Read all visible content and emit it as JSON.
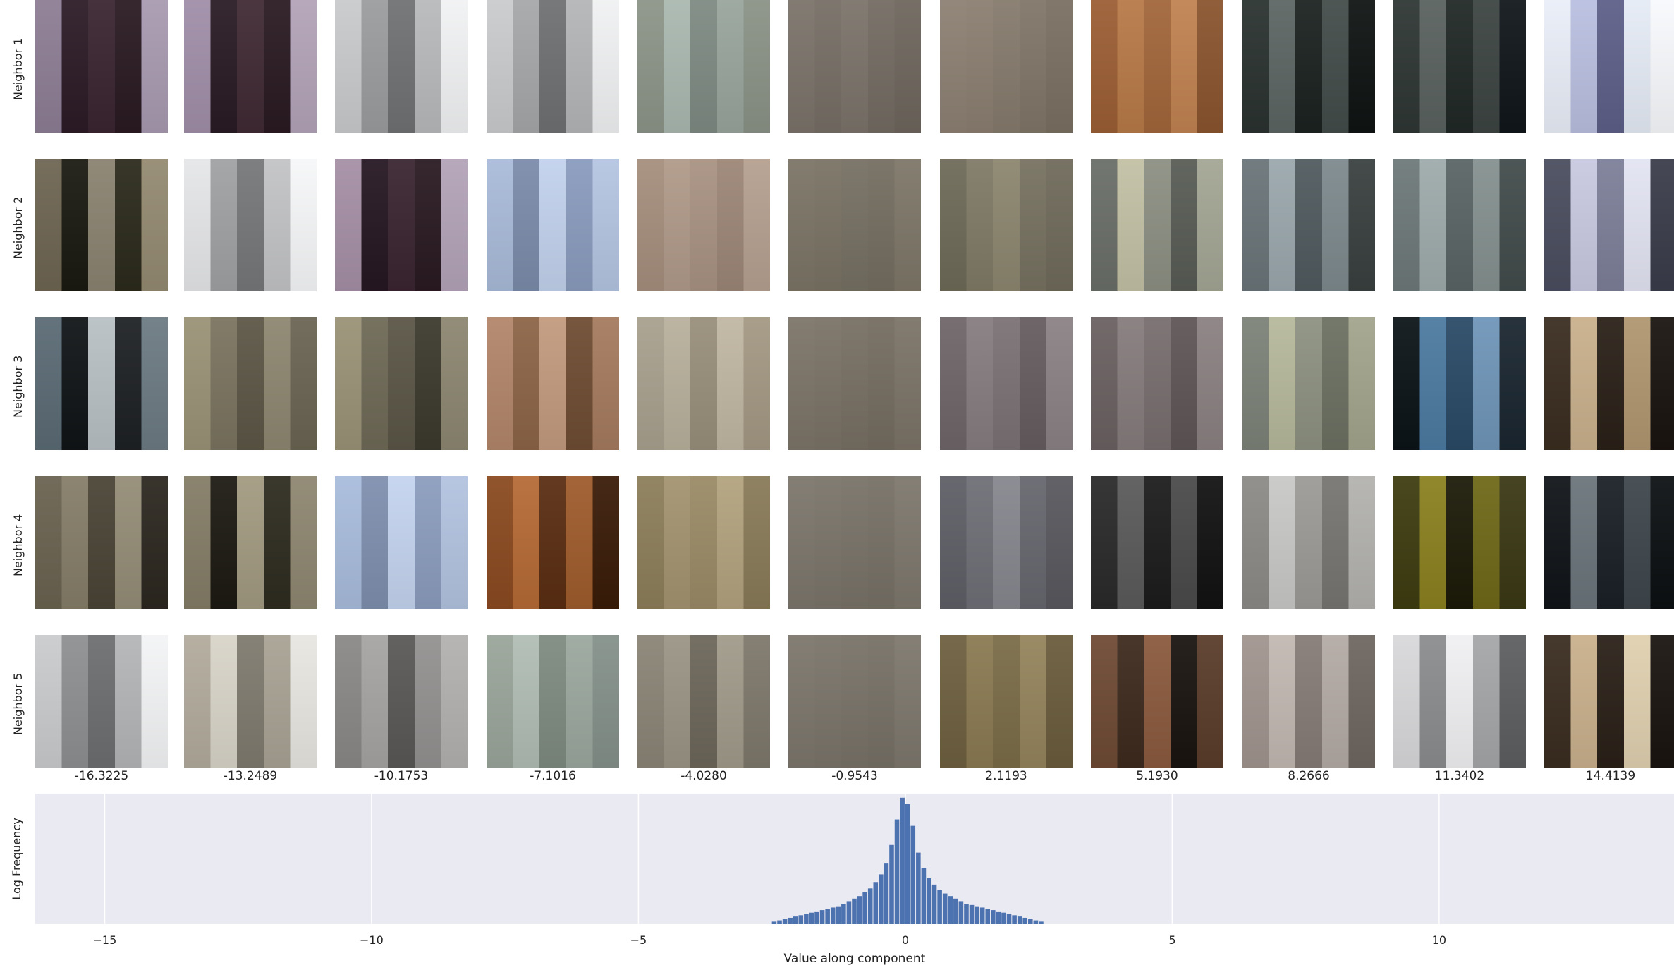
{
  "row_labels": [
    "Neighbor 1",
    "Neighbor 2",
    "Neighbor 3",
    "Neighbor 4",
    "Neighbor 5"
  ],
  "column_values": [
    "-16.3225",
    "-13.2489",
    "-10.1753",
    "-7.1016",
    "-4.0280",
    "-0.9543",
    "2.1193",
    "5.1930",
    "8.2666",
    "11.3402",
    "14.4139"
  ],
  "tile_palettes": [
    [
      [
        "#8d7d94",
        "#2c1b26",
        "#3a2530",
        "#2a1a22",
        "#a89ab0"
      ],
      [
        "#a08ea8",
        "#2a1b24",
        "#402a34",
        "#2a1a22",
        "#b3a3b8"
      ],
      [
        "#c8cacc",
        "#9a9c9e",
        "#6f7173",
        "#b7b9bb",
        "#f1f2f3"
      ],
      [
        "#c9cbcd",
        "#a5a7a9",
        "#6e7072",
        "#b3b5b7",
        "#f0f1f2"
      ],
      [
        "#8c9488",
        "#a9b8b0",
        "#7d8a82",
        "#98a59c",
        "#8a9286"
      ],
      [
        "#7b736a",
        "#766e65",
        "#7b736a",
        "#736b62",
        "#6e665d"
      ],
      [
        "#8c8072",
        "#8a7e70",
        "#857a6c",
        "#807568",
        "#7a6f62"
      ],
      [
        "#9b5e34",
        "#b77947",
        "#a2663a",
        "#c08251",
        "#8a542e"
      ],
      [
        "#2a3230",
        "#5c6563",
        "#1b2220",
        "#434c4a",
        "#0f1413"
      ],
      [
        "#2e3634",
        "#59615f",
        "#202826",
        "#3c4442",
        "#10161a"
      ],
      [
        "#e9eef8",
        "#b9bfe0",
        "#5d5f88",
        "#e5ebf5",
        "#f7f9fc"
      ]
    ],
    [
      [
        "#6e6552",
        "#1a1a12",
        "#8a8270",
        "#2b2a1c",
        "#948a72"
      ],
      [
        "#e5e6e8",
        "#9fa1a3",
        "#757779",
        "#c2c3c5",
        "#f6f7f8"
      ],
      [
        "#a58fa6",
        "#261722",
        "#3a2530",
        "#2a1a22",
        "#b3a3b8"
      ],
      [
        "#a9bbd9",
        "#7b8caa",
        "#c2d2ec",
        "#8a9bbd",
        "#b4c5e1"
      ],
      [
        "#a58e7d",
        "#b09a89",
        "#a89282",
        "#9c8677",
        "#b5a090"
      ],
      [
        "#7b7466",
        "#797264",
        "#767063",
        "#746d60",
        "#7d7668"
      ],
      [
        "#6e6a58",
        "#7f7a66",
        "#8c866f",
        "#767160",
        "#6f6a5a"
      ],
      [
        "#6a6e68",
        "#c2c0a4",
        "#8c8f82",
        "#585c55",
        "#a3a594"
      ],
      [
        "#6a7478",
        "#9aa7ac",
        "#505a5e",
        "#7d898d",
        "#39403f"
      ],
      [
        "#6d7878",
        "#9eaaab",
        "#5a6464",
        "#84908f",
        "#424b4b"
      ],
      [
        "#4a4d5e",
        "#c8c8e0",
        "#7d7f99",
        "#e3e4f2",
        "#3a3c4a"
      ]
    ],
    [
      [
        "#5a6a74",
        "#101416",
        "#b8c0c4",
        "#1e2124",
        "#6c7a82"
      ],
      [
        "#9a9276",
        "#7a735f",
        "#5c5646",
        "#8d8670",
        "#6a6453"
      ],
      [
        "#9a9276",
        "#6e6956",
        "#5a5546",
        "#3c392d",
        "#8c8670"
      ],
      [
        "#b2866a",
        "#8c6446",
        "#c29a7e",
        "#6e4c32",
        "#a47a5e"
      ],
      [
        "#a8a08e",
        "#b8b09c",
        "#988e7a",
        "#c0b6a2",
        "#a39883"
      ],
      [
        "#7c7468",
        "#7a7266",
        "#776f63",
        "#746c60",
        "#7b7367"
      ],
      [
        "#6e6568",
        "#857c7f",
        "#7a7174",
        "#655c5f",
        "#8a8184"
      ],
      [
        "#6a6061",
        "#857b7c",
        "#776d6e",
        "#5e5556",
        "#8a8081"
      ],
      [
        "#7c8278",
        "#b6b89c",
        "#8d9180",
        "#6b7062",
        "#a2a48c"
      ],
      [
        "#0c1418",
        "#4c7aa0",
        "#2a4a66",
        "#6f95b8",
        "#1a2630"
      ],
      [
        "#3a2c20",
        "#c9b08c",
        "#2a2018",
        "#b09670",
        "#1a1410"
      ]
    ],
    [
      [
        "#6a6250",
        "#857d68",
        "#4a4436",
        "#948c76",
        "#2c2820"
      ],
      [
        "#847c66",
        "#1c1a12",
        "#a29a80",
        "#2e2c20",
        "#8e8670"
      ],
      [
        "#a8bcdc",
        "#7e8fae",
        "#c4d4ee",
        "#8b9cbd",
        "#b2c3e0"
      ],
      [
        "#8a4a20",
        "#b56a36",
        "#5a2e12",
        "#9e5c2c",
        "#3a1c08"
      ],
      [
        "#8c7e5a",
        "#a39370",
        "#9a8a66",
        "#b2a27e",
        "#887a58"
      ],
      [
        "#7c766c",
        "#7a746a",
        "#787268",
        "#767066",
        "#7d776d"
      ],
      [
        "#5e5e66",
        "#6e6e76",
        "#86868e",
        "#66666e",
        "#58585e"
      ],
      [
        "#2a2a2a",
        "#5a5a5a",
        "#1c1c1c",
        "#4a4a4a",
        "#121212"
      ],
      [
        "#8c8a86",
        "#c8c8c6",
        "#9c9a96",
        "#777571",
        "#b3b2ae"
      ],
      [
        "#3e3c10",
        "#8a8020",
        "#1c1a08",
        "#6e6818",
        "#3a3814"
      ],
      [
        "#101418",
        "#6a747a",
        "#1a2026",
        "#3e464c",
        "#0c1012"
      ]
    ],
    [
      [
        "#c9cbcd",
        "#8d8f91",
        "#6c6e70",
        "#b3b5b7",
        "#f3f4f5"
      ],
      [
        "#b2ab9c",
        "#d8d4c8",
        "#7f7a6e",
        "#a8a294",
        "#e8e6e0"
      ],
      [
        "#8a8886",
        "#a6a4a2",
        "#5a5856",
        "#939190",
        "#b3b1af"
      ],
      [
        "#9aa59a",
        "#b0bdb4",
        "#7e8a80",
        "#9ba89e",
        "#84908a"
      ],
      [
        "#8a8476",
        "#9a9485",
        "#6c665a",
        "#a09a8a",
        "#7e786b"
      ],
      [
        "#7c766c",
        "#7a746a",
        "#787268",
        "#767066",
        "#7d776d"
      ],
      [
        "#6e6040",
        "#8a7a52",
        "#7a6c48",
        "#94845c",
        "#6a5c3c"
      ],
      [
        "#6e4a34",
        "#3e2a1e",
        "#8a5a3e",
        "#1a1410",
        "#5a3c2a"
      ],
      [
        "#a0948e",
        "#c2b8b2",
        "#857b76",
        "#b3aaa4",
        "#6e6660"
      ],
      [
        "#d8d8da",
        "#8a8c8e",
        "#f0f0f2",
        "#a4a6a8",
        "#5c5e60"
      ],
      [
        "#3a2c20",
        "#c9b08c",
        "#2a2018",
        "#e0d0b0",
        "#1a1410"
      ]
    ]
  ],
  "chart_data": {
    "type": "bar",
    "xlabel": "Value along component",
    "ylabel": "Log Frequency",
    "xlim": [
      -16.3,
      14.4
    ],
    "xticks": [
      -15,
      -10,
      -5,
      0,
      5,
      10
    ],
    "xtick_labels": [
      "−15",
      "−10",
      "−5",
      "0",
      "5",
      "10"
    ],
    "bin_width": 0.1,
    "bar_color": "#4c72b0",
    "background": "#eaeaf2",
    "grid": true,
    "bins": [
      {
        "x": -2.45,
        "v": 0.02
      },
      {
        "x": -2.35,
        "v": 0.03
      },
      {
        "x": -2.25,
        "v": 0.04
      },
      {
        "x": -2.15,
        "v": 0.05
      },
      {
        "x": -2.05,
        "v": 0.06
      },
      {
        "x": -1.95,
        "v": 0.07
      },
      {
        "x": -1.85,
        "v": 0.08
      },
      {
        "x": -1.75,
        "v": 0.09
      },
      {
        "x": -1.65,
        "v": 0.1
      },
      {
        "x": -1.55,
        "v": 0.11
      },
      {
        "x": -1.45,
        "v": 0.12
      },
      {
        "x": -1.35,
        "v": 0.13
      },
      {
        "x": -1.25,
        "v": 0.14
      },
      {
        "x": -1.15,
        "v": 0.16
      },
      {
        "x": -1.05,
        "v": 0.18
      },
      {
        "x": -0.95,
        "v": 0.2
      },
      {
        "x": -0.85,
        "v": 0.22
      },
      {
        "x": -0.75,
        "v": 0.25
      },
      {
        "x": -0.65,
        "v": 0.28
      },
      {
        "x": -0.55,
        "v": 0.33
      },
      {
        "x": -0.45,
        "v": 0.39
      },
      {
        "x": -0.35,
        "v": 0.48
      },
      {
        "x": -0.25,
        "v": 0.62
      },
      {
        "x": -0.15,
        "v": 0.82
      },
      {
        "x": -0.05,
        "v": 0.99
      },
      {
        "x": 0.05,
        "v": 0.94
      },
      {
        "x": 0.15,
        "v": 0.77
      },
      {
        "x": 0.25,
        "v": 0.56
      },
      {
        "x": 0.35,
        "v": 0.44
      },
      {
        "x": 0.45,
        "v": 0.36
      },
      {
        "x": 0.55,
        "v": 0.31
      },
      {
        "x": 0.65,
        "v": 0.27
      },
      {
        "x": 0.75,
        "v": 0.24
      },
      {
        "x": 0.85,
        "v": 0.22
      },
      {
        "x": 0.95,
        "v": 0.2
      },
      {
        "x": 1.05,
        "v": 0.18
      },
      {
        "x": 1.15,
        "v": 0.16
      },
      {
        "x": 1.25,
        "v": 0.15
      },
      {
        "x": 1.35,
        "v": 0.14
      },
      {
        "x": 1.45,
        "v": 0.13
      },
      {
        "x": 1.55,
        "v": 0.12
      },
      {
        "x": 1.65,
        "v": 0.11
      },
      {
        "x": 1.75,
        "v": 0.1
      },
      {
        "x": 1.85,
        "v": 0.09
      },
      {
        "x": 1.95,
        "v": 0.08
      },
      {
        "x": 2.05,
        "v": 0.07
      },
      {
        "x": 2.15,
        "v": 0.06
      },
      {
        "x": 2.25,
        "v": 0.05
      },
      {
        "x": 2.35,
        "v": 0.04
      },
      {
        "x": 2.45,
        "v": 0.03
      },
      {
        "x": 2.55,
        "v": 0.02
      }
    ]
  }
}
